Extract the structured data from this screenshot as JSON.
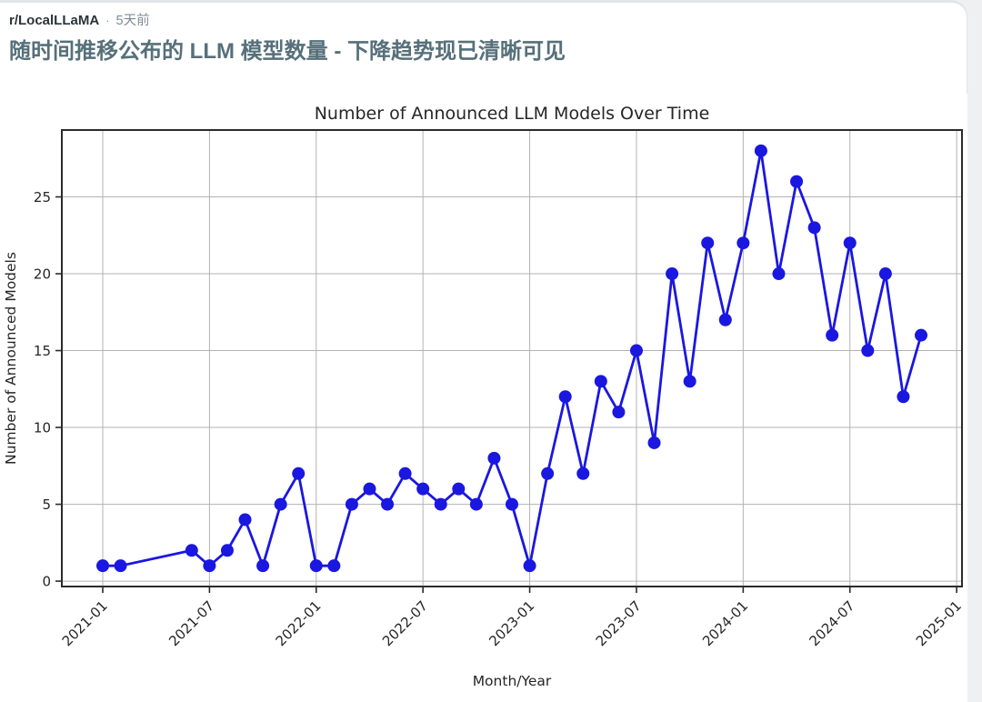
{
  "post": {
    "subreddit": "r/LocalLLaMA",
    "separator": "·",
    "time_ago": "5天前",
    "title": "随时间推移公布的 LLM 模型数量 - 下降趋势现已清晰可见"
  },
  "chart_data": {
    "type": "line",
    "title": "Number of Announced LLM Models Over Time",
    "xlabel": "Month/Year",
    "ylabel": "Number of Announced Models",
    "x": [
      "2021-01",
      "2021-02",
      "2021-06",
      "2021-07",
      "2021-08",
      "2021-09",
      "2021-10",
      "2021-11",
      "2021-12",
      "2022-01",
      "2022-02",
      "2022-03",
      "2022-04",
      "2022-05",
      "2022-06",
      "2022-07",
      "2022-08",
      "2022-09",
      "2022-10",
      "2022-11",
      "2022-12",
      "2023-01",
      "2023-02",
      "2023-03",
      "2023-04",
      "2023-05",
      "2023-06",
      "2023-07",
      "2023-08",
      "2023-09",
      "2023-10",
      "2023-11",
      "2023-12",
      "2024-01",
      "2024-02",
      "2024-03",
      "2024-04",
      "2024-05",
      "2024-06",
      "2024-07",
      "2024-08",
      "2024-09",
      "2024-10",
      "2024-11"
    ],
    "values": [
      1,
      1,
      2,
      1,
      2,
      4,
      1,
      5,
      7,
      1,
      1,
      5,
      6,
      5,
      7,
      6,
      5,
      6,
      5,
      8,
      5,
      1,
      7,
      12,
      7,
      13,
      11,
      15,
      9,
      20,
      13,
      22,
      17,
      22,
      28,
      20,
      26,
      23,
      16,
      22,
      15,
      20,
      12,
      16
    ],
    "x_ticks": [
      "2021-01",
      "2021-07",
      "2022-01",
      "2022-07",
      "2023-01",
      "2023-07",
      "2024-01",
      "2024-07",
      "2025-01"
    ],
    "y_ticks": [
      0,
      5,
      10,
      15,
      20,
      25
    ],
    "xlim_months": [
      -2.3,
      48.3
    ],
    "ylim": [
      -0.35,
      29.35
    ],
    "grid": true,
    "legend": "none",
    "line_color": "#1a17e0",
    "marker_color": "#1a17e0",
    "grid_color": "#b3b3b3",
    "frame_color": "#2b2b2b"
  }
}
